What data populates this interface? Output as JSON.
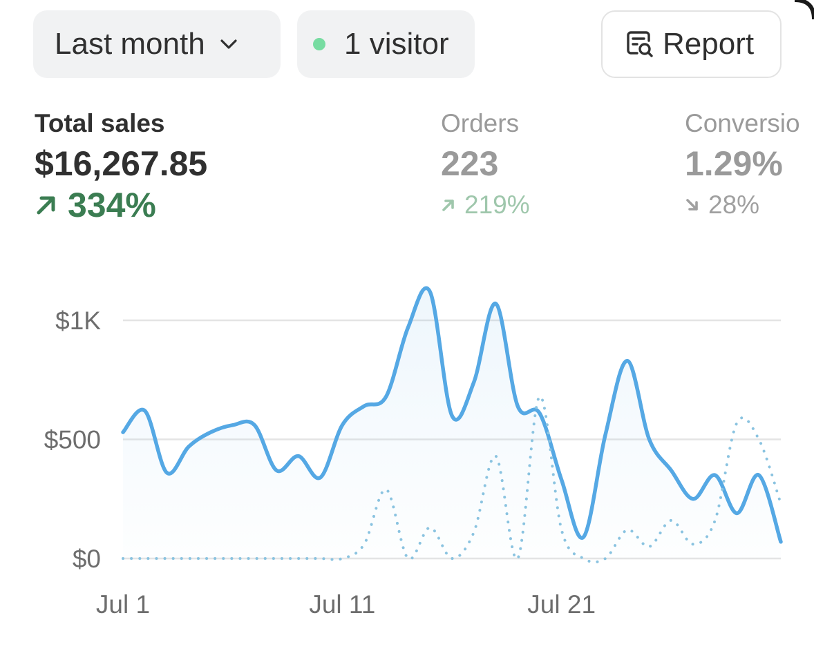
{
  "header": {
    "period": "Last month",
    "visitors": "1 visitor",
    "report_label": "Report"
  },
  "metrics": {
    "sales": {
      "label": "Total sales",
      "value": "$16,267.85",
      "change": "334%",
      "direction": "up"
    },
    "orders": {
      "label": "Orders",
      "value": "223",
      "change": "219%",
      "direction": "up"
    },
    "conversion": {
      "label": "Conversio",
      "value": "1.29%",
      "change": "28%",
      "direction": "down"
    }
  },
  "colors": {
    "line": "#55a8e4",
    "positive": "#3b7d52",
    "positive_muted": "#9fc7ac",
    "live_dot": "#77dca1"
  },
  "icons": [
    "chevron-down-icon",
    "status-dot-icon",
    "report-search-icon",
    "arrow-up-right-icon",
    "arrow-down-right-icon"
  ],
  "chart_data": {
    "type": "line",
    "title": "",
    "xlabel": "",
    "ylabel": "",
    "ylim": [
      0,
      1000
    ],
    "grid": true,
    "y_ticks": [
      "$0",
      "$500",
      "$1K"
    ],
    "x_ticks": [
      "Jul 1",
      "Jul 11",
      "Jul 21"
    ],
    "x": [
      1,
      2,
      3,
      4,
      5,
      6,
      7,
      8,
      9,
      10,
      11,
      12,
      13,
      14,
      15,
      16,
      17,
      18,
      19,
      20,
      21,
      22,
      23,
      24,
      25,
      26,
      27,
      28,
      29,
      30,
      31
    ],
    "series": [
      {
        "style": "solid",
        "values": [
          530,
          620,
          360,
          470,
          530,
          560,
          560,
          370,
          430,
          340,
          560,
          640,
          680,
          970,
          1120,
          600,
          740,
          1070,
          640,
          610,
          330,
          90,
          520,
          830,
          500,
          370,
          250,
          350,
          190,
          350,
          70
        ]
      },
      {
        "style": "dotted",
        "values": [
          0,
          0,
          0,
          0,
          0,
          0,
          0,
          0,
          0,
          0,
          0,
          60,
          290,
          0,
          130,
          0,
          110,
          430,
          0,
          680,
          120,
          0,
          0,
          120,
          50,
          160,
          60,
          160,
          570,
          500,
          230
        ]
      }
    ]
  }
}
